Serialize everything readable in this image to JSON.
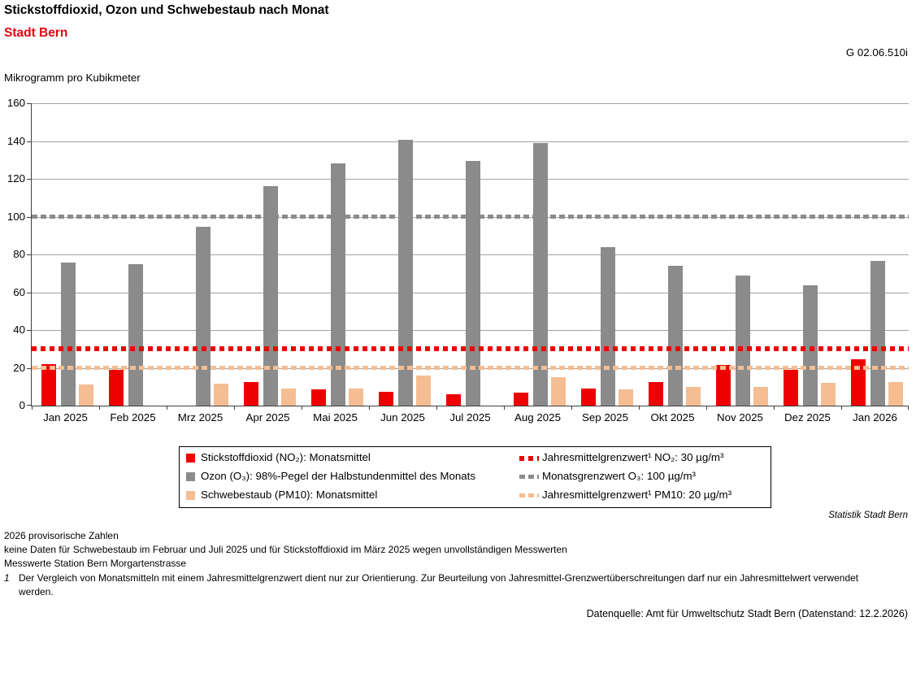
{
  "header": {
    "title": "Stickstoffdioxid, Ozon und Schwebestaub nach Monat",
    "subtitle": "Stadt Bern",
    "figure_code": "G 02.06.510i",
    "unit_label": "Mikrogramm pro Kubikmeter"
  },
  "chart_data": {
    "type": "bar",
    "title": "Stickstoffdioxid, Ozon und Schwebestaub nach Monat",
    "subtitle": "Stadt Bern",
    "ylabel": "Mikrogramm pro Kubikmeter",
    "xlabel": "",
    "ylim": [
      0,
      160
    ],
    "ytick_step": 20,
    "grid": true,
    "legend_position": "bottom",
    "categories": [
      "Jan 2025",
      "Feb 2025",
      "Mrz 2025",
      "Apr 2025",
      "Mai 2025",
      "Jun 2025",
      "Jul 2025",
      "Aug 2025",
      "Sep 2025",
      "Okt 2025",
      "Nov 2025",
      "Dez 2025",
      "Jan 2026"
    ],
    "series": [
      {
        "key": "no2",
        "name": "Stickstoffdioxid (NO₂): Monatsmittel",
        "color": "#ee0000",
        "values": [
          22,
          19,
          null,
          12.5,
          8.5,
          7.5,
          6,
          7,
          9,
          12.5,
          21.5,
          19,
          24.5
        ]
      },
      {
        "key": "o3",
        "name": "Ozon (O₃): 98%-Pegel der Halbstundenmittel des Monats",
        "color": "#8b8b8b",
        "values": [
          75.5,
          75,
          94.5,
          116,
          128,
          140.5,
          129.5,
          139,
          84,
          74,
          69,
          63.5,
          76.5
        ]
      },
      {
        "key": "pm10",
        "name": "Schwebestaub (PM10): Monatsmittel",
        "color": "#f4bd92",
        "values": [
          11,
          null,
          11.5,
          9,
          9,
          16,
          null,
          15,
          8.5,
          10,
          10,
          12,
          12.5
        ]
      }
    ],
    "reference_lines": [
      {
        "key": "no2-limit",
        "label": "Jahresmittelgrenzwert¹ NO₂: 30 µg/m³",
        "value": 30,
        "color": "#ee0000",
        "style": "dotted"
      },
      {
        "key": "o3-limit",
        "label": "Monatsgrenzwert O₃: 100 µg/m³",
        "value": 100,
        "color": "#8b8b8b",
        "style": "dashed"
      },
      {
        "key": "pm10-limit",
        "label": "Jahresmittelgrenzwert¹ PM10: 20 µg/m³",
        "value": 20,
        "color": "#f4bd92",
        "style": "dashed"
      }
    ]
  },
  "footer": {
    "attribution": "Statistik Stadt Bern",
    "notes": [
      "2026 provisorische Zahlen",
      "keine Daten für Schwebestaub im Februar und Juli 2025 und für Stickstoffdioxid im März 2025 wegen unvollständigen Messwerten",
      "Messwerte Station Bern Morgartenstrasse"
    ],
    "footnote": {
      "marker": "1",
      "text": "Der Vergleich von Monatsmitteln mit einem Jahresmittelgrenzwert dient nur zur Orientierung. Zur Beurteilung von Jahresmittel-Grenzwertüberschreitungen darf nur ein Jahresmittelwert verwendet werden."
    },
    "source": "Datenquelle: Amt für Umweltschutz Stadt Bern (Datenstand: 12.2.2026)"
  }
}
